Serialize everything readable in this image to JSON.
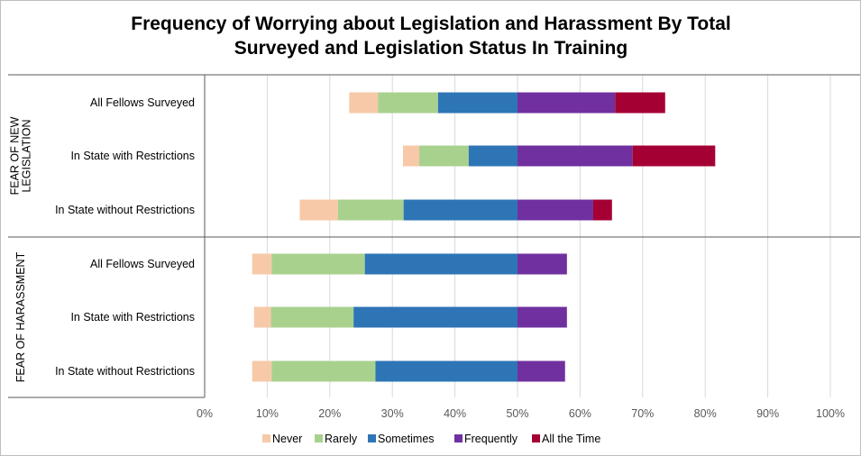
{
  "chart_data": {
    "type": "bar",
    "orientation": "horizontal",
    "stacked": "diverging",
    "title": "Frequency of Worrying about Legislation and Harassment By Total Surveyed and Legislation Status In Training",
    "title_lines": [
      "Frequency of Worrying about Legislation and Harassment By Total",
      "Surveyed and Legislation Status In Training"
    ],
    "xlim": [
      0,
      100
    ],
    "x_ticks": [
      "0%",
      "10%",
      "20%",
      "30%",
      "40%",
      "50%",
      "60%",
      "70%",
      "80%",
      "90%",
      "100%"
    ],
    "grid": true,
    "legend_position": "bottom",
    "groups": [
      {
        "label": "FEAR OF NEW LEGISLATION",
        "label_lines": [
          "FEAR OF NEW",
          "LEGISLATION"
        ],
        "categories": [
          "All Fellows Surveyed",
          "In State with Restrictions",
          "In State without Restrictions"
        ]
      },
      {
        "label": "FEAR OF HARASSMENT",
        "label_lines": [
          "FEAR OF HARASSMENT"
        ],
        "categories": [
          "All Fellows Surveyed",
          "In State with Restrictions",
          "In State without Restrictions"
        ]
      }
    ],
    "series": [
      {
        "name": "Never",
        "color": "#f7c9a8",
        "values": [
          4.6,
          2.6,
          6.1,
          3.1,
          2.7,
          3.1
        ]
      },
      {
        "name": "Rarely",
        "color": "#a9d18e",
        "values": [
          9.6,
          7.9,
          10.5,
          14.9,
          13.2,
          16.6
        ]
      },
      {
        "name": "Sometimes",
        "color": "#2e75b6",
        "values": [
          12.7,
          7.8,
          18.2,
          24.4,
          26.2,
          22.7
        ]
      },
      {
        "name": "Frequently",
        "color": "#7030a0",
        "values": [
          15.6,
          18.4,
          12.1,
          7.9,
          7.9,
          7.6
        ]
      },
      {
        "name": "All the Time",
        "color": "#a50034",
        "values": [
          8.0,
          13.2,
          3.0,
          0,
          0,
          0
        ]
      }
    ],
    "bar_rows": [
      {
        "category": "All Fellows Surveyed",
        "start": 23.1
      },
      {
        "category": "In State with Restrictions",
        "start": 31.7
      },
      {
        "category": "In State without Restrictions",
        "start": 15.2
      },
      {
        "category": "All Fellows Surveyed",
        "start": 7.6
      },
      {
        "category": "In State with Restrictions",
        "start": 7.9
      },
      {
        "category": "In State without Restrictions",
        "start": 7.6
      }
    ]
  }
}
